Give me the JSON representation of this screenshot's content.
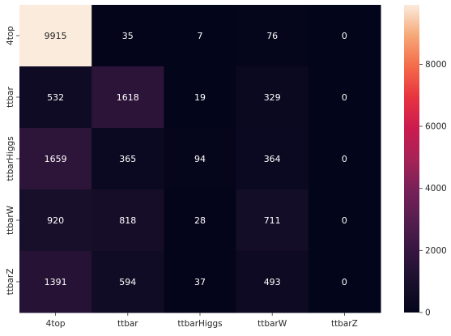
{
  "chart_data": {
    "type": "heatmap",
    "title": "",
    "xlabel": "",
    "ylabel": "",
    "x_categories": [
      "4top",
      "ttbar",
      "ttbarHiggs",
      "ttbarW",
      "ttbarZ"
    ],
    "y_categories": [
      "4top",
      "ttbar",
      "ttbarHiggs",
      "ttbarW",
      "ttbarZ"
    ],
    "values": [
      [
        9915,
        35,
        7,
        76,
        0
      ],
      [
        532,
        1618,
        19,
        329,
        0
      ],
      [
        1659,
        365,
        94,
        364,
        0
      ],
      [
        920,
        818,
        28,
        711,
        0
      ],
      [
        1391,
        594,
        37,
        493,
        0
      ]
    ],
    "colorbar": {
      "colormap": "rocket",
      "vmin": 0,
      "vmax": 9915,
      "ticks": [
        0,
        2000,
        4000,
        6000,
        8000
      ]
    }
  }
}
